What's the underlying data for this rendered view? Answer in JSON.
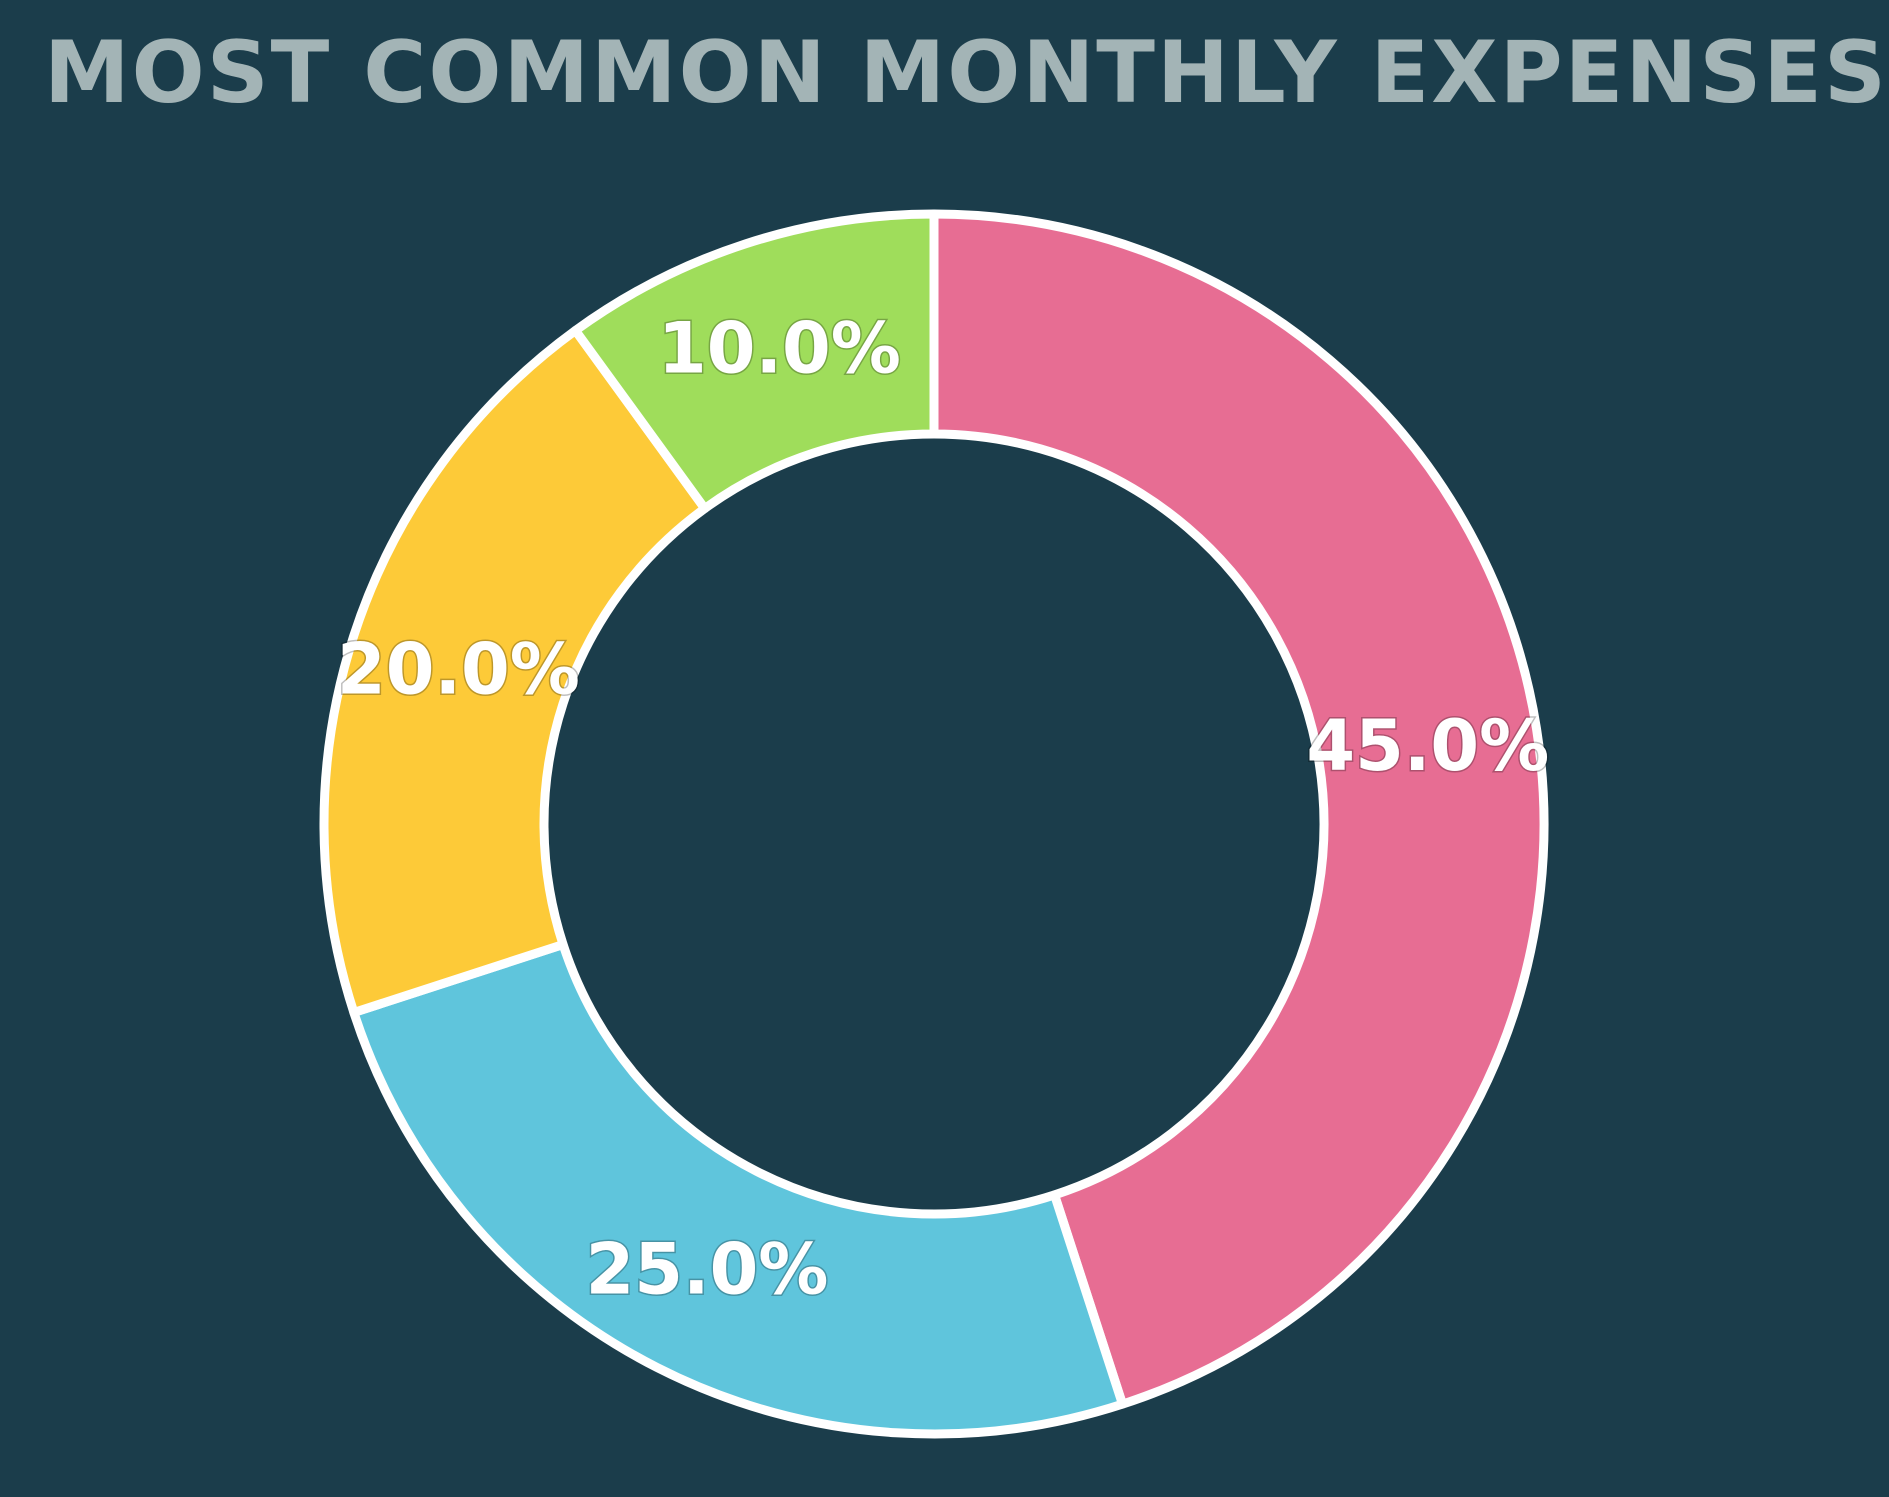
{
  "chart_data": {
    "type": "pie",
    "title": "MOST COMMON MONTHLY EXPENSES",
    "donut": true,
    "start_angle_deg": 0,
    "direction": "clockwise",
    "slices": [
      {
        "value": 45.0,
        "label": "45.0%",
        "color": "#e76d93"
      },
      {
        "value": 25.0,
        "label": "25.0%",
        "color": "#5fc5dc"
      },
      {
        "value": 20.0,
        "label": "20.0%",
        "color": "#fdca38"
      },
      {
        "value": 10.0,
        "label": "10.0%",
        "color": "#9fdd5b"
      }
    ],
    "slice_border_color": "#ffffff",
    "legend": "none"
  },
  "colors": {
    "background": "#1b3d4b",
    "title": "#a3b4b6"
  }
}
